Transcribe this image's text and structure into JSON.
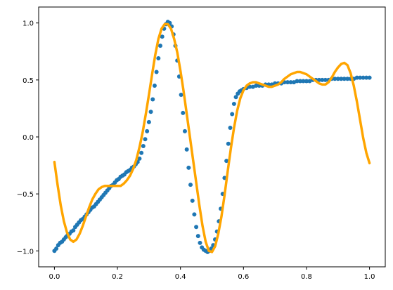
{
  "chart_data": {
    "type": "scatter",
    "title": "",
    "xlabel": "",
    "ylabel": "",
    "xlim": [
      -0.05,
      1.05
    ],
    "ylim": [
      -1.14,
      1.14
    ],
    "grid": false,
    "legend": "none",
    "x_ticks": [
      0.0,
      0.2,
      0.4,
      0.6,
      0.8,
      1.0
    ],
    "x_tick_labels": [
      "0.0",
      "0.2",
      "0.4",
      "0.6",
      "0.8",
      "1.0"
    ],
    "y_ticks": [
      -1.0,
      -0.5,
      0.0,
      0.5,
      1.0
    ],
    "y_tick_labels": [
      "−1.0",
      "−0.5",
      "0.0",
      "0.5",
      "1.0"
    ],
    "series": [
      {
        "kind": "scatter",
        "color": "#1f77b4",
        "points": [
          [
            0.0,
            -1.0
          ],
          [
            0.006,
            -0.98
          ],
          [
            0.012,
            -0.95
          ],
          [
            0.018,
            -0.93
          ],
          [
            0.024,
            -0.92
          ],
          [
            0.03,
            -0.9
          ],
          [
            0.036,
            -0.88
          ],
          [
            0.042,
            -0.86
          ],
          [
            0.048,
            -0.85
          ],
          [
            0.054,
            -0.83
          ],
          [
            0.06,
            -0.82
          ],
          [
            0.066,
            -0.79
          ],
          [
            0.072,
            -0.77
          ],
          [
            0.078,
            -0.75
          ],
          [
            0.084,
            -0.73
          ],
          [
            0.09,
            -0.72
          ],
          [
            0.096,
            -0.7
          ],
          [
            0.102,
            -0.68
          ],
          [
            0.108,
            -0.66
          ],
          [
            0.114,
            -0.64
          ],
          [
            0.12,
            -0.62
          ],
          [
            0.126,
            -0.61
          ],
          [
            0.132,
            -0.59
          ],
          [
            0.138,
            -0.57
          ],
          [
            0.144,
            -0.55
          ],
          [
            0.15,
            -0.53
          ],
          [
            0.156,
            -0.51
          ],
          [
            0.162,
            -0.49
          ],
          [
            0.168,
            -0.47
          ],
          [
            0.174,
            -0.45
          ],
          [
            0.18,
            -0.43
          ],
          [
            0.186,
            -0.42
          ],
          [
            0.192,
            -0.4
          ],
          [
            0.198,
            -0.38
          ],
          [
            0.204,
            -0.37
          ],
          [
            0.21,
            -0.35
          ],
          [
            0.216,
            -0.34
          ],
          [
            0.222,
            -0.33
          ],
          [
            0.228,
            -0.31
          ],
          [
            0.234,
            -0.3
          ],
          [
            0.24,
            -0.29
          ],
          [
            0.246,
            -0.27
          ],
          [
            0.252,
            -0.26
          ],
          [
            0.258,
            -0.24
          ],
          [
            0.264,
            -0.22
          ],
          [
            0.27,
            -0.19
          ],
          [
            0.276,
            -0.14
          ],
          [
            0.282,
            -0.08
          ],
          [
            0.288,
            -0.02
          ],
          [
            0.294,
            0.05
          ],
          [
            0.3,
            0.13
          ],
          [
            0.306,
            0.22
          ],
          [
            0.312,
            0.33
          ],
          [
            0.318,
            0.45
          ],
          [
            0.324,
            0.57
          ],
          [
            0.33,
            0.69
          ],
          [
            0.336,
            0.8
          ],
          [
            0.342,
            0.88
          ],
          [
            0.348,
            0.95
          ],
          [
            0.354,
            0.99
          ],
          [
            0.36,
            1.01
          ],
          [
            0.366,
            1.0
          ],
          [
            0.372,
            0.97
          ],
          [
            0.378,
            0.9
          ],
          [
            0.384,
            0.8
          ],
          [
            0.39,
            0.67
          ],
          [
            0.396,
            0.53
          ],
          [
            0.402,
            0.37
          ],
          [
            0.408,
            0.21
          ],
          [
            0.414,
            0.05
          ],
          [
            0.42,
            -0.11
          ],
          [
            0.426,
            -0.27
          ],
          [
            0.432,
            -0.42
          ],
          [
            0.438,
            -0.56
          ],
          [
            0.444,
            -0.68
          ],
          [
            0.45,
            -0.79
          ],
          [
            0.456,
            -0.87
          ],
          [
            0.462,
            -0.93
          ],
          [
            0.468,
            -0.97
          ],
          [
            0.474,
            -0.99
          ],
          [
            0.48,
            -1.0
          ],
          [
            0.486,
            -1.01
          ],
          [
            0.492,
            -1.0
          ],
          [
            0.498,
            -0.98
          ],
          [
            0.504,
            -0.95
          ],
          [
            0.51,
            -0.9
          ],
          [
            0.516,
            -0.83
          ],
          [
            0.522,
            -0.74
          ],
          [
            0.528,
            -0.63
          ],
          [
            0.534,
            -0.5
          ],
          [
            0.54,
            -0.36
          ],
          [
            0.546,
            -0.21
          ],
          [
            0.552,
            -0.06
          ],
          [
            0.558,
            0.08
          ],
          [
            0.564,
            0.2
          ],
          [
            0.57,
            0.29
          ],
          [
            0.576,
            0.35
          ],
          [
            0.582,
            0.38
          ],
          [
            0.588,
            0.4
          ],
          [
            0.594,
            0.41
          ],
          [
            0.6,
            0.42
          ],
          [
            0.61,
            0.43
          ],
          [
            0.62,
            0.44
          ],
          [
            0.63,
            0.44
          ],
          [
            0.64,
            0.45
          ],
          [
            0.65,
            0.45
          ],
          [
            0.66,
            0.45
          ],
          [
            0.67,
            0.46
          ],
          [
            0.68,
            0.46
          ],
          [
            0.69,
            0.46
          ],
          [
            0.7,
            0.47
          ],
          [
            0.71,
            0.47
          ],
          [
            0.72,
            0.47
          ],
          [
            0.73,
            0.48
          ],
          [
            0.74,
            0.48
          ],
          [
            0.75,
            0.48
          ],
          [
            0.76,
            0.48
          ],
          [
            0.77,
            0.49
          ],
          [
            0.78,
            0.49
          ],
          [
            0.79,
            0.49
          ],
          [
            0.8,
            0.49
          ],
          [
            0.81,
            0.49
          ],
          [
            0.82,
            0.5
          ],
          [
            0.83,
            0.5
          ],
          [
            0.84,
            0.5
          ],
          [
            0.85,
            0.5
          ],
          [
            0.86,
            0.5
          ],
          [
            0.87,
            0.5
          ],
          [
            0.88,
            0.51
          ],
          [
            0.89,
            0.51
          ],
          [
            0.9,
            0.51
          ],
          [
            0.91,
            0.51
          ],
          [
            0.92,
            0.51
          ],
          [
            0.93,
            0.51
          ],
          [
            0.94,
            0.51
          ],
          [
            0.95,
            0.51
          ],
          [
            0.96,
            0.52
          ],
          [
            0.97,
            0.52
          ],
          [
            0.98,
            0.52
          ],
          [
            0.99,
            0.52
          ],
          [
            1.0,
            0.52
          ]
        ]
      },
      {
        "kind": "line",
        "color": "#ffa500",
        "points": [
          [
            0.0,
            -0.22
          ],
          [
            0.01,
            -0.42
          ],
          [
            0.02,
            -0.6
          ],
          [
            0.03,
            -0.74
          ],
          [
            0.04,
            -0.84
          ],
          [
            0.05,
            -0.9
          ],
          [
            0.06,
            -0.92
          ],
          [
            0.07,
            -0.9
          ],
          [
            0.08,
            -0.85
          ],
          [
            0.09,
            -0.78
          ],
          [
            0.1,
            -0.7
          ],
          [
            0.11,
            -0.62
          ],
          [
            0.12,
            -0.55
          ],
          [
            0.13,
            -0.5
          ],
          [
            0.14,
            -0.46
          ],
          [
            0.15,
            -0.44
          ],
          [
            0.16,
            -0.43
          ],
          [
            0.17,
            -0.43
          ],
          [
            0.18,
            -0.43
          ],
          [
            0.19,
            -0.43
          ],
          [
            0.2,
            -0.43
          ],
          [
            0.21,
            -0.43
          ],
          [
            0.22,
            -0.41
          ],
          [
            0.23,
            -0.38
          ],
          [
            0.24,
            -0.34
          ],
          [
            0.25,
            -0.28
          ],
          [
            0.26,
            -0.2
          ],
          [
            0.27,
            -0.09
          ],
          [
            0.28,
            0.04
          ],
          [
            0.29,
            0.2
          ],
          [
            0.3,
            0.37
          ],
          [
            0.31,
            0.55
          ],
          [
            0.32,
            0.72
          ],
          [
            0.33,
            0.86
          ],
          [
            0.34,
            0.95
          ],
          [
            0.35,
            0.99
          ],
          [
            0.36,
            0.99
          ],
          [
            0.37,
            0.95
          ],
          [
            0.38,
            0.86
          ],
          [
            0.39,
            0.74
          ],
          [
            0.4,
            0.58
          ],
          [
            0.41,
            0.4
          ],
          [
            0.42,
            0.2
          ],
          [
            0.43,
            0.0
          ],
          [
            0.44,
            -0.2
          ],
          [
            0.45,
            -0.4
          ],
          [
            0.46,
            -0.6
          ],
          [
            0.47,
            -0.78
          ],
          [
            0.48,
            -0.92
          ],
          [
            0.49,
            -1.0
          ],
          [
            0.5,
            -1.01
          ],
          [
            0.51,
            -0.96
          ],
          [
            0.52,
            -0.85
          ],
          [
            0.53,
            -0.7
          ],
          [
            0.54,
            -0.51
          ],
          [
            0.55,
            -0.3
          ],
          [
            0.56,
            -0.1
          ],
          [
            0.57,
            0.08
          ],
          [
            0.58,
            0.23
          ],
          [
            0.59,
            0.34
          ],
          [
            0.6,
            0.41
          ],
          [
            0.61,
            0.45
          ],
          [
            0.62,
            0.47
          ],
          [
            0.63,
            0.48
          ],
          [
            0.64,
            0.48
          ],
          [
            0.65,
            0.47
          ],
          [
            0.66,
            0.46
          ],
          [
            0.67,
            0.45
          ],
          [
            0.68,
            0.44
          ],
          [
            0.69,
            0.44
          ],
          [
            0.7,
            0.45
          ],
          [
            0.71,
            0.46
          ],
          [
            0.72,
            0.48
          ],
          [
            0.73,
            0.51
          ],
          [
            0.74,
            0.53
          ],
          [
            0.75,
            0.55
          ],
          [
            0.76,
            0.56
          ],
          [
            0.77,
            0.57
          ],
          [
            0.78,
            0.57
          ],
          [
            0.79,
            0.56
          ],
          [
            0.8,
            0.55
          ],
          [
            0.81,
            0.53
          ],
          [
            0.82,
            0.51
          ],
          [
            0.83,
            0.49
          ],
          [
            0.84,
            0.47
          ],
          [
            0.85,
            0.46
          ],
          [
            0.86,
            0.46
          ],
          [
            0.87,
            0.48
          ],
          [
            0.88,
            0.52
          ],
          [
            0.89,
            0.57
          ],
          [
            0.9,
            0.61
          ],
          [
            0.91,
            0.64
          ],
          [
            0.92,
            0.65
          ],
          [
            0.93,
            0.63
          ],
          [
            0.94,
            0.56
          ],
          [
            0.95,
            0.45
          ],
          [
            0.96,
            0.31
          ],
          [
            0.97,
            0.15
          ],
          [
            0.98,
            -0.01
          ],
          [
            0.99,
            -0.14
          ],
          [
            1.0,
            -0.23
          ]
        ]
      }
    ]
  }
}
